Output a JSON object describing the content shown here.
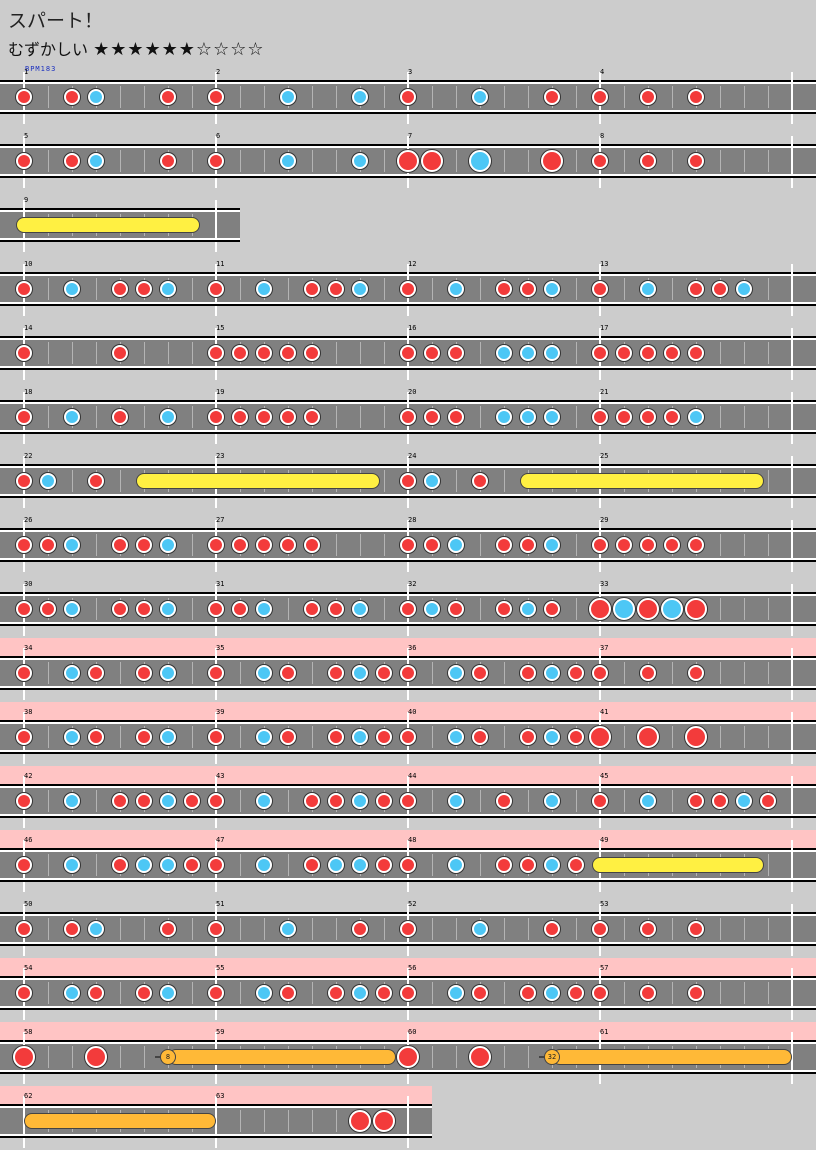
{
  "song": {
    "title": "スパート！",
    "difficulty_label": "むずかしい",
    "stars": "★★★★★★☆☆☆☆",
    "star_level": 6,
    "star_max": 10,
    "bpm_label": "BPM183"
  },
  "colors": {
    "background": "#cccccc",
    "lane": "#808080",
    "gogo_highlight": "#ffc4c4",
    "don": "#f33b3b",
    "ka": "#4dc7f5",
    "drumroll": "#fff042",
    "balloon": "#ffb937"
  },
  "legend": {
    "don": "red-note-icon",
    "ka": "blue-note-icon",
    "drumroll": "yellow-drumroll-bar",
    "balloon": "balloon-icon"
  },
  "rows": [
    {
      "measures": [
        "1",
        "2",
        "3",
        "4"
      ],
      "gogo": false,
      "notes": [
        [
          0,
          "d"
        ],
        [
          2,
          "d"
        ],
        [
          3,
          "k"
        ],
        [
          6,
          "d"
        ],
        [
          8,
          "d"
        ],
        [
          11,
          "k"
        ],
        [
          14,
          "k"
        ],
        [
          16,
          "d"
        ],
        [
          19,
          "k"
        ],
        [
          22,
          "d"
        ],
        [
          24,
          "d"
        ],
        [
          26,
          "d"
        ],
        [
          28,
          "d"
        ]
      ],
      "rolls": []
    },
    {
      "measures": [
        "5",
        "6",
        "7",
        "8"
      ],
      "gogo": false,
      "notes": [
        [
          0,
          "d"
        ],
        [
          2,
          "d"
        ],
        [
          3,
          "k"
        ],
        [
          6,
          "d"
        ],
        [
          8,
          "d"
        ],
        [
          11,
          "k"
        ],
        [
          14,
          "k"
        ],
        [
          16,
          "D"
        ],
        [
          17,
          "D"
        ],
        [
          19,
          "K"
        ],
        [
          22,
          "D"
        ],
        [
          24,
          "d"
        ],
        [
          26,
          "d"
        ],
        [
          28,
          "d"
        ]
      ],
      "rolls": []
    },
    {
      "measures": [
        "9"
      ],
      "gogo": false,
      "notes": [],
      "rolls": [
        [
          0,
          7,
          "roll",
          ""
        ]
      ]
    },
    {
      "measures": [
        "10",
        "11",
        "12",
        "13"
      ],
      "gogo": false,
      "notes": [
        [
          0,
          "d"
        ],
        [
          2,
          "k"
        ],
        [
          4,
          "d"
        ],
        [
          5,
          "d"
        ],
        [
          6,
          "k"
        ],
        [
          8,
          "d"
        ],
        [
          10,
          "k"
        ],
        [
          12,
          "d"
        ],
        [
          13,
          "d"
        ],
        [
          14,
          "k"
        ],
        [
          16,
          "d"
        ],
        [
          18,
          "k"
        ],
        [
          20,
          "d"
        ],
        [
          21,
          "d"
        ],
        [
          22,
          "k"
        ],
        [
          24,
          "d"
        ],
        [
          26,
          "k"
        ],
        [
          28,
          "d"
        ],
        [
          29,
          "d"
        ],
        [
          30,
          "k"
        ]
      ],
      "rolls": []
    },
    {
      "measures": [
        "14",
        "15",
        "16",
        "17"
      ],
      "gogo": false,
      "notes": [
        [
          0,
          "d"
        ],
        [
          4,
          "d"
        ],
        [
          8,
          "d"
        ],
        [
          9,
          "d"
        ],
        [
          10,
          "d"
        ],
        [
          11,
          "d"
        ],
        [
          12,
          "d"
        ],
        [
          16,
          "d"
        ],
        [
          17,
          "d"
        ],
        [
          18,
          "d"
        ],
        [
          20,
          "k"
        ],
        [
          21,
          "k"
        ],
        [
          22,
          "k"
        ],
        [
          24,
          "d"
        ],
        [
          25,
          "d"
        ],
        [
          26,
          "d"
        ],
        [
          27,
          "d"
        ],
        [
          28,
          "d"
        ]
      ],
      "rolls": []
    },
    {
      "measures": [
        "18",
        "19",
        "20",
        "21"
      ],
      "gogo": false,
      "notes": [
        [
          0,
          "d"
        ],
        [
          2,
          "k"
        ],
        [
          4,
          "d"
        ],
        [
          6,
          "k"
        ],
        [
          8,
          "d"
        ],
        [
          9,
          "d"
        ],
        [
          10,
          "d"
        ],
        [
          11,
          "d"
        ],
        [
          12,
          "d"
        ],
        [
          16,
          "d"
        ],
        [
          17,
          "d"
        ],
        [
          18,
          "d"
        ],
        [
          20,
          "k"
        ],
        [
          21,
          "k"
        ],
        [
          22,
          "k"
        ],
        [
          24,
          "d"
        ],
        [
          25,
          "d"
        ],
        [
          26,
          "d"
        ],
        [
          27,
          "d"
        ],
        [
          28,
          "k"
        ]
      ],
      "rolls": []
    },
    {
      "measures": [
        "22",
        "23",
        "24",
        "25"
      ],
      "gogo": false,
      "notes": [
        [
          0,
          "d"
        ],
        [
          1,
          "k"
        ],
        [
          3,
          "d"
        ],
        [
          16,
          "d"
        ],
        [
          17,
          "k"
        ],
        [
          19,
          "d"
        ]
      ],
      "rolls": [
        [
          5,
          14.5,
          "roll",
          ""
        ],
        [
          21,
          30.5,
          "roll",
          ""
        ]
      ]
    },
    {
      "measures": [
        "26",
        "27",
        "28",
        "29"
      ],
      "gogo": false,
      "notes": [
        [
          0,
          "d"
        ],
        [
          1,
          "d"
        ],
        [
          2,
          "k"
        ],
        [
          4,
          "d"
        ],
        [
          5,
          "d"
        ],
        [
          6,
          "k"
        ],
        [
          8,
          "d"
        ],
        [
          9,
          "d"
        ],
        [
          10,
          "d"
        ],
        [
          11,
          "d"
        ],
        [
          12,
          "d"
        ],
        [
          16,
          "d"
        ],
        [
          17,
          "d"
        ],
        [
          18,
          "k"
        ],
        [
          20,
          "d"
        ],
        [
          21,
          "d"
        ],
        [
          22,
          "k"
        ],
        [
          24,
          "d"
        ],
        [
          25,
          "d"
        ],
        [
          26,
          "d"
        ],
        [
          27,
          "d"
        ],
        [
          28,
          "d"
        ]
      ],
      "rolls": []
    },
    {
      "measures": [
        "30",
        "31",
        "32",
        "33"
      ],
      "gogo": false,
      "notes": [
        [
          0,
          "d"
        ],
        [
          1,
          "d"
        ],
        [
          2,
          "k"
        ],
        [
          4,
          "d"
        ],
        [
          5,
          "d"
        ],
        [
          6,
          "k"
        ],
        [
          8,
          "d"
        ],
        [
          9,
          "d"
        ],
        [
          10,
          "k"
        ],
        [
          12,
          "d"
        ],
        [
          13,
          "d"
        ],
        [
          14,
          "k"
        ],
        [
          16,
          "d"
        ],
        [
          17,
          "k"
        ],
        [
          18,
          "d"
        ],
        [
          20,
          "d"
        ],
        [
          21,
          "k"
        ],
        [
          22,
          "d"
        ],
        [
          24,
          "D"
        ],
        [
          25,
          "K"
        ],
        [
          26,
          "D"
        ],
        [
          27,
          "K"
        ],
        [
          28,
          "D"
        ]
      ],
      "rolls": []
    },
    {
      "measures": [
        "34",
        "35",
        "36",
        "37"
      ],
      "gogo": true,
      "notes": [
        [
          0,
          "d"
        ],
        [
          2,
          "k"
        ],
        [
          3,
          "d"
        ],
        [
          5,
          "d"
        ],
        [
          6,
          "k"
        ],
        [
          8,
          "d"
        ],
        [
          10,
          "k"
        ],
        [
          11,
          "d"
        ],
        [
          13,
          "d"
        ],
        [
          14,
          "k"
        ],
        [
          15,
          "d"
        ],
        [
          16,
          "d"
        ],
        [
          18,
          "k"
        ],
        [
          19,
          "d"
        ],
        [
          21,
          "d"
        ],
        [
          22,
          "k"
        ],
        [
          23,
          "d"
        ],
        [
          24,
          "d"
        ],
        [
          26,
          "d"
        ],
        [
          28,
          "d"
        ]
      ],
      "rolls": []
    },
    {
      "measures": [
        "38",
        "39",
        "40",
        "41"
      ],
      "gogo": true,
      "notes": [
        [
          0,
          "d"
        ],
        [
          2,
          "k"
        ],
        [
          3,
          "d"
        ],
        [
          5,
          "d"
        ],
        [
          6,
          "k"
        ],
        [
          8,
          "d"
        ],
        [
          10,
          "k"
        ],
        [
          11,
          "d"
        ],
        [
          13,
          "d"
        ],
        [
          14,
          "k"
        ],
        [
          15,
          "d"
        ],
        [
          16,
          "d"
        ],
        [
          18,
          "k"
        ],
        [
          19,
          "d"
        ],
        [
          21,
          "d"
        ],
        [
          22,
          "k"
        ],
        [
          23,
          "d"
        ],
        [
          24,
          "D"
        ],
        [
          26,
          "D"
        ],
        [
          28,
          "D"
        ]
      ],
      "rolls": []
    },
    {
      "measures": [
        "42",
        "43",
        "44",
        "45"
      ],
      "gogo": true,
      "notes": [
        [
          0,
          "d"
        ],
        [
          2,
          "k"
        ],
        [
          4,
          "d"
        ],
        [
          5,
          "d"
        ],
        [
          6,
          "k"
        ],
        [
          7,
          "d"
        ],
        [
          8,
          "d"
        ],
        [
          10,
          "k"
        ],
        [
          12,
          "d"
        ],
        [
          13,
          "d"
        ],
        [
          14,
          "k"
        ],
        [
          15,
          "d"
        ],
        [
          16,
          "d"
        ],
        [
          18,
          "k"
        ],
        [
          20,
          "d"
        ],
        [
          22,
          "k"
        ],
        [
          24,
          "d"
        ],
        [
          26,
          "k"
        ],
        [
          28,
          "d"
        ],
        [
          29,
          "d"
        ],
        [
          30,
          "k"
        ],
        [
          31,
          "d"
        ]
      ],
      "rolls": []
    },
    {
      "measures": [
        "46",
        "47",
        "48",
        "49"
      ],
      "gogo": true,
      "notes": [
        [
          0,
          "d"
        ],
        [
          2,
          "k"
        ],
        [
          4,
          "d"
        ],
        [
          5,
          "k"
        ],
        [
          6,
          "k"
        ],
        [
          7,
          "d"
        ],
        [
          8,
          "d"
        ],
        [
          10,
          "k"
        ],
        [
          12,
          "d"
        ],
        [
          13,
          "k"
        ],
        [
          14,
          "k"
        ],
        [
          15,
          "d"
        ],
        [
          16,
          "d"
        ],
        [
          18,
          "k"
        ],
        [
          20,
          "d"
        ],
        [
          21,
          "d"
        ],
        [
          22,
          "k"
        ],
        [
          23,
          "d"
        ]
      ],
      "rolls": [
        [
          24,
          30.5,
          "roll",
          ""
        ]
      ]
    },
    {
      "measures": [
        "50",
        "51",
        "52",
        "53"
      ],
      "gogo": false,
      "notes": [
        [
          0,
          "d"
        ],
        [
          2,
          "d"
        ],
        [
          3,
          "k"
        ],
        [
          6,
          "d"
        ],
        [
          8,
          "d"
        ],
        [
          11,
          "k"
        ],
        [
          14,
          "d"
        ],
        [
          16,
          "d"
        ],
        [
          19,
          "k"
        ],
        [
          22,
          "d"
        ],
        [
          24,
          "d"
        ],
        [
          26,
          "d"
        ],
        [
          28,
          "d"
        ]
      ],
      "rolls": []
    },
    {
      "measures": [
        "54",
        "55",
        "56",
        "57"
      ],
      "gogo": true,
      "notes": [
        [
          0,
          "d"
        ],
        [
          2,
          "k"
        ],
        [
          3,
          "d"
        ],
        [
          5,
          "d"
        ],
        [
          6,
          "k"
        ],
        [
          8,
          "d"
        ],
        [
          10,
          "k"
        ],
        [
          11,
          "d"
        ],
        [
          13,
          "d"
        ],
        [
          14,
          "k"
        ],
        [
          15,
          "d"
        ],
        [
          16,
          "d"
        ],
        [
          18,
          "k"
        ],
        [
          19,
          "d"
        ],
        [
          21,
          "d"
        ],
        [
          22,
          "k"
        ],
        [
          23,
          "d"
        ],
        [
          24,
          "d"
        ],
        [
          26,
          "d"
        ],
        [
          28,
          "d"
        ]
      ],
      "rolls": []
    },
    {
      "measures": [
        "58",
        "59",
        "60",
        "61"
      ],
      "gogo": true,
      "notes": [
        [
          0,
          "D"
        ],
        [
          3,
          "D"
        ],
        [
          16,
          "D"
        ],
        [
          19,
          "D"
        ]
      ],
      "rolls": [
        [
          6,
          15.5,
          "balloon",
          "8"
        ],
        [
          22,
          32,
          "balloon",
          "32"
        ]
      ]
    },
    {
      "measures": [
        "62",
        "63"
      ],
      "gogo": true,
      "notes": [
        [
          14,
          "D"
        ],
        [
          15,
          "D"
        ]
      ],
      "rolls": [
        [
          0,
          8,
          "balloon",
          ""
        ]
      ]
    }
  ]
}
